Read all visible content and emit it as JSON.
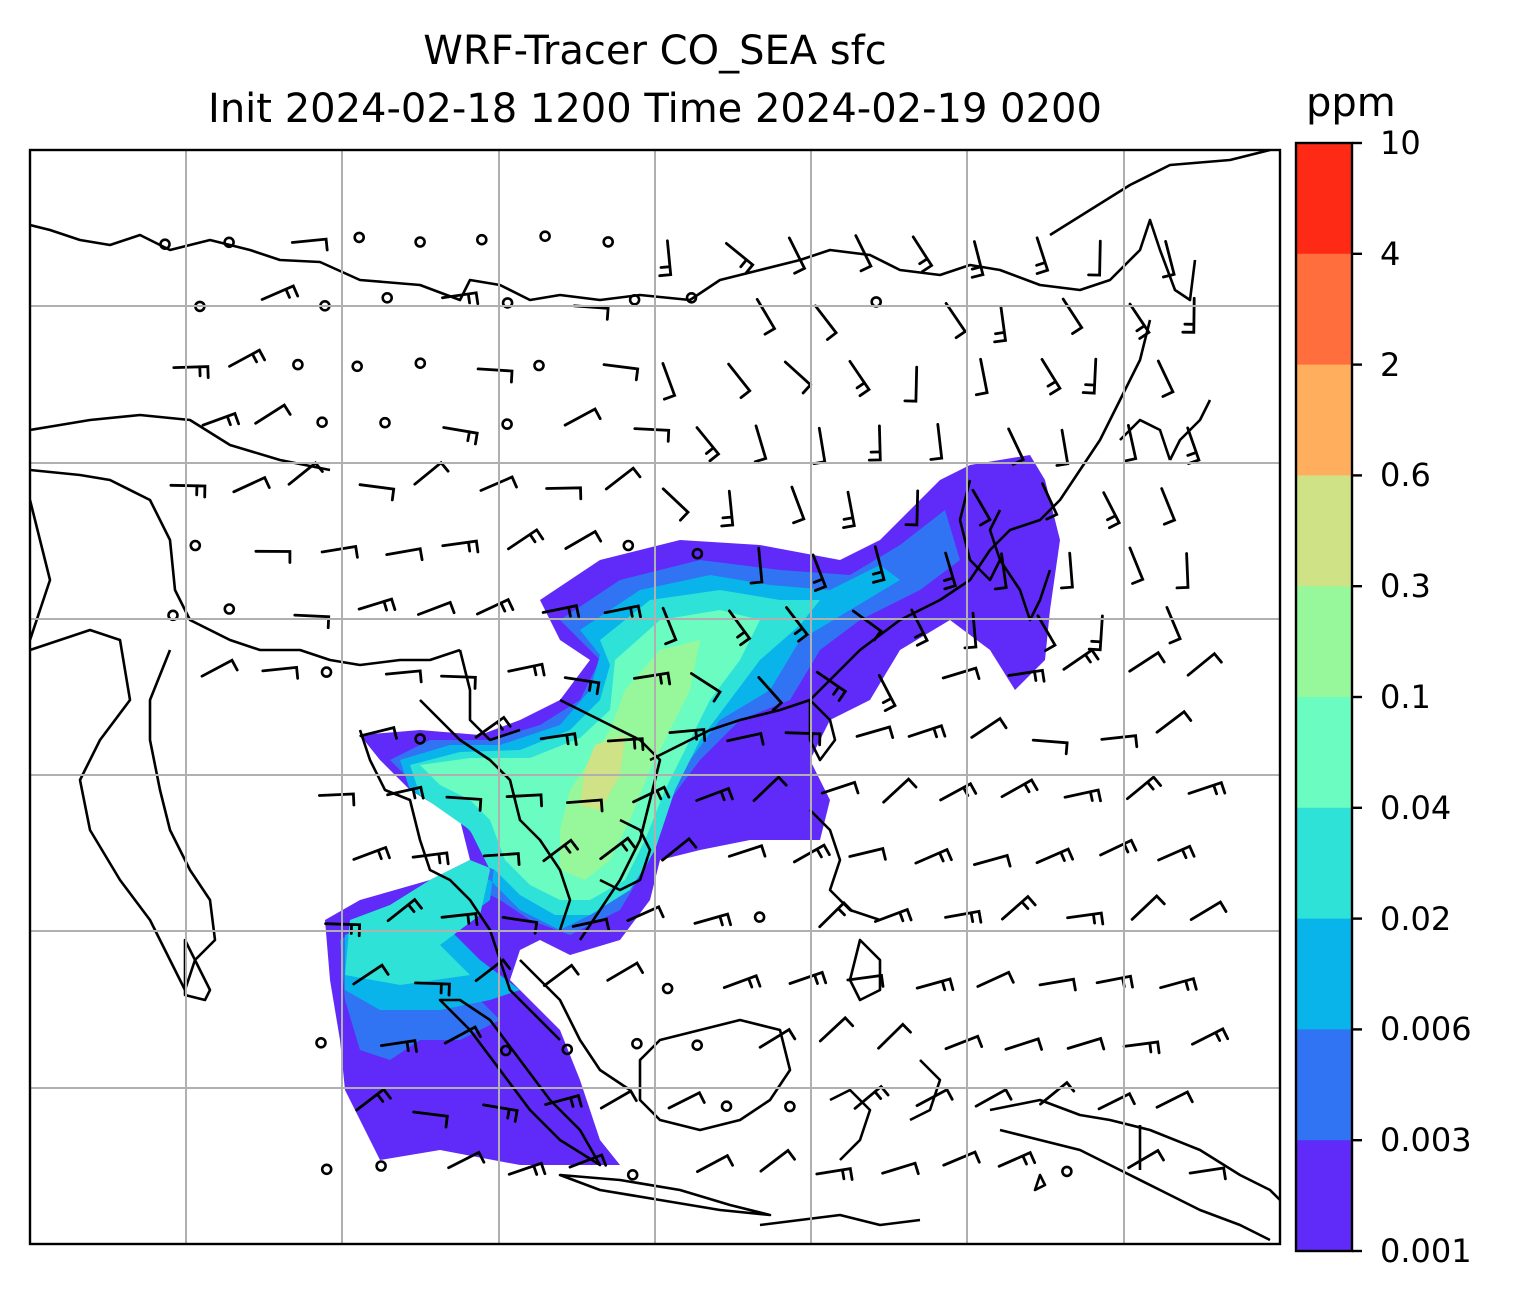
{
  "title": {
    "line1": "WRF-Tracer CO_SEA sfc",
    "line2": "Init 2024-02-18 1200 Time 2024-02-19 0200"
  },
  "colorbar": {
    "unit": "ppm",
    "ticks": [
      "10",
      "4",
      "2",
      "0.6",
      "0.3",
      "0.1",
      "0.04",
      "0.02",
      "0.006",
      "0.003",
      "0.001"
    ],
    "colors": [
      "#ff2a16",
      "#ff6e3c",
      "#ffae5e",
      "#cfe285",
      "#96f89a",
      "#6afcc0",
      "#2ee2d8",
      "#08b4ea",
      "#3074f4",
      "#602af8"
    ]
  },
  "map": {
    "gridlines": true,
    "wind_barbs": true
  }
}
